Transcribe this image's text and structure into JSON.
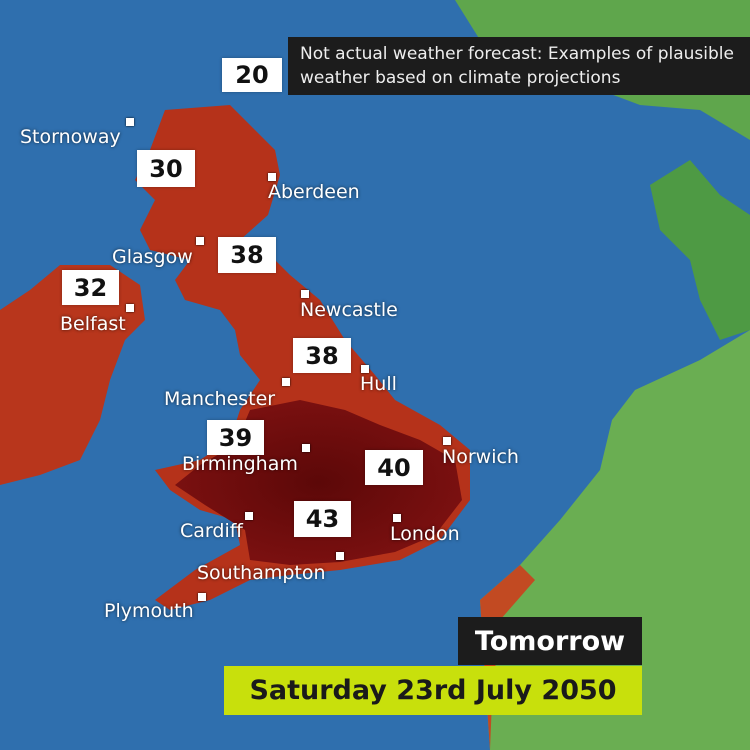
{
  "disclaimer": "Not actual weather forecast: Examples of plausible weather based on climate projections",
  "day_label": "Tomorrow",
  "date_label": "Saturday 23rd July 2050",
  "colors": {
    "sea": "#2f6fae",
    "land_hot": "#b5321a",
    "land_very_hot": "#6e0d0d",
    "land_europe": "#5aa84a",
    "date_banner": "#c8e00c"
  },
  "cities": [
    {
      "name": "Stornoway"
    },
    {
      "name": "Aberdeen"
    },
    {
      "name": "Glasgow"
    },
    {
      "name": "Newcastle"
    },
    {
      "name": "Belfast"
    },
    {
      "name": "Hull"
    },
    {
      "name": "Manchester"
    },
    {
      "name": "Birmingham"
    },
    {
      "name": "Norwich"
    },
    {
      "name": "Cardiff"
    },
    {
      "name": "London"
    },
    {
      "name": "Southampton"
    },
    {
      "name": "Plymouth"
    }
  ],
  "temperatures": [
    "20",
    "30",
    "38",
    "32",
    "38",
    "39",
    "40",
    "43"
  ]
}
